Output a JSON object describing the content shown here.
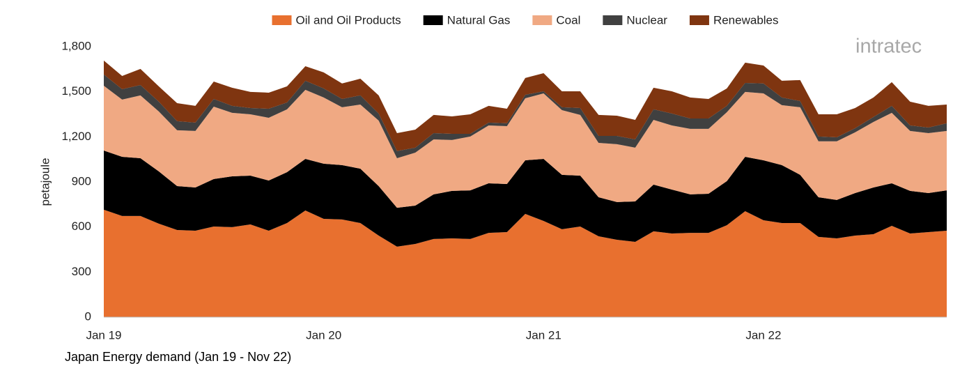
{
  "chart_data": {
    "type": "stacked_area",
    "title": "Japan Energy demand (Jan 19 - Nov 22)",
    "y_label": "petajoule",
    "logo": "intratec",
    "categories": [
      "Jan 19",
      null,
      null,
      null,
      null,
      null,
      null,
      null,
      null,
      null,
      null,
      null,
      "Jan 20",
      null,
      null,
      null,
      null,
      null,
      null,
      null,
      null,
      null,
      null,
      null,
      "Jan 21",
      null,
      null,
      null,
      null,
      null,
      null,
      null,
      null,
      null,
      null,
      null,
      "Jan 22",
      null,
      null,
      null,
      null,
      null,
      null,
      null,
      null,
      null,
      null
    ],
    "series": [
      {
        "name": "Oil and Oil Products",
        "color": "#e8702f",
        "values": [
          715,
          673,
          673,
          622,
          580,
          575,
          603,
          599,
          617,
          575,
          626,
          710,
          654,
          650,
          626,
          543,
          469,
          487,
          520,
          524,
          520,
          561,
          566,
          687,
          640,
          585,
          603,
          538,
          515,
          501,
          571,
          557,
          561,
          561,
          612,
          705,
          645,
          626,
          626,
          534,
          524,
          543,
          552,
          608,
          557,
          566,
          575
        ]
      },
      {
        "name": "Natural Gas",
        "color": "#000000",
        "values": [
          394,
          394,
          385,
          348,
          292,
          288,
          316,
          338,
          325,
          334,
          339,
          343,
          367,
          362,
          362,
          329,
          259,
          255,
          297,
          316,
          324,
          330,
          320,
          357,
          413,
          362,
          339,
          260,
          251,
          269,
          311,
          292,
          256,
          260,
          293,
          362,
          399,
          386,
          321,
          264,
          256,
          283,
          311,
          283,
          283,
          260,
          269
        ]
      },
      {
        "name": "Coal",
        "color": "#f0a983",
        "values": [
          431,
          381,
          418,
          399,
          372,
          376,
          482,
          423,
          408,
          418,
          418,
          460,
          441,
          385,
          427,
          436,
          330,
          353,
          366,
          339,
          358,
          385,
          385,
          413,
          436,
          431,
          404,
          362,
          385,
          358,
          431,
          427,
          436,
          432,
          459,
          432,
          445,
          399,
          450,
          372,
          390,
          404,
          436,
          469,
          399,
          399,
          395
        ]
      },
      {
        "name": "Nuclear",
        "color": "#404040",
        "values": [
          75,
          69,
          69,
          65,
          60,
          56,
          51,
          46,
          42,
          60,
          46,
          60,
          60,
          55,
          61,
          47,
          47,
          33,
          42,
          41,
          18,
          19,
          19,
          23,
          14,
          19,
          46,
          46,
          55,
          55,
          70,
          79,
          69,
          69,
          42,
          60,
          66,
          51,
          41,
          32,
          27,
          27,
          33,
          46,
          37,
          37,
          51
        ]
      },
      {
        "name": "Renewables",
        "color": "#7f3510",
        "values": [
          93,
          88,
          107,
          102,
          120,
          111,
          116,
          121,
          107,
          107,
          107,
          97,
          107,
          103,
          111,
          121,
          120,
          120,
          121,
          116,
          130,
          111,
          97,
          112,
          121,
          106,
          111,
          140,
          135,
          130,
          144,
          148,
          140,
          130,
          116,
          135,
          120,
          111,
          140,
          148,
          153,
          135,
          130,
          158,
          158,
          144,
          125
        ]
      }
    ],
    "ylim": [
      0,
      1800
    ],
    "yticks": [
      0,
      300,
      600,
      900,
      {
        "value": 1200,
        "label": "1,200"
      },
      {
        "value": 1500,
        "label": "1,500"
      },
      {
        "value": 1800,
        "label": "1,800"
      }
    ],
    "grid": false,
    "legend": "top"
  }
}
